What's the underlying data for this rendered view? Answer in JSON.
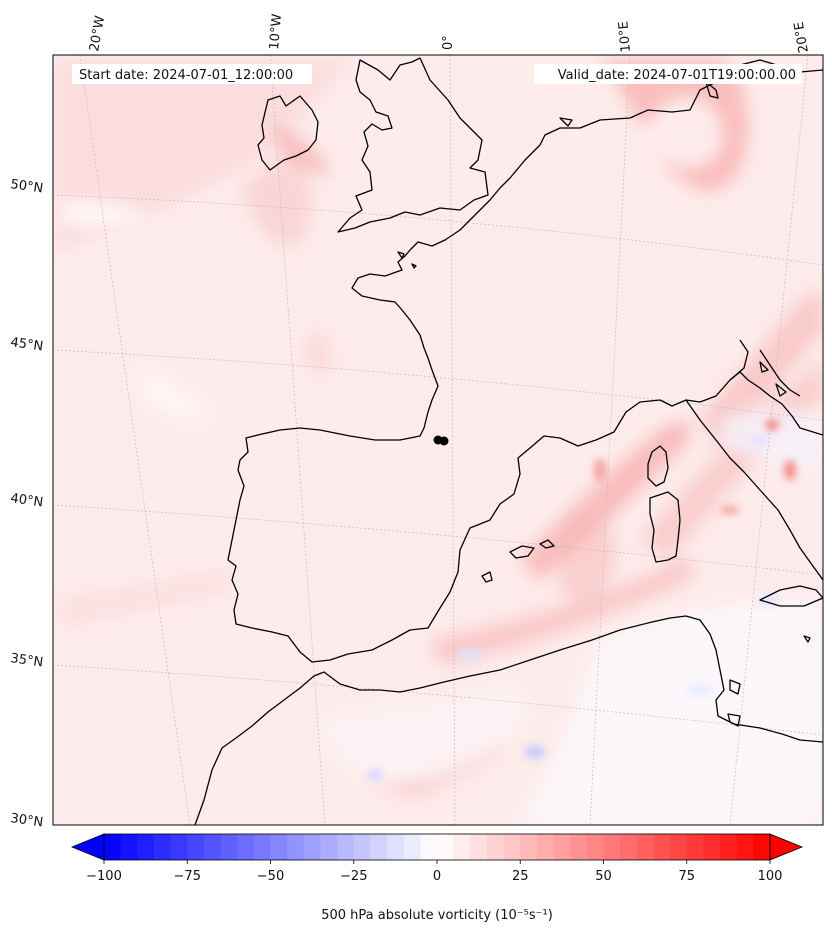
{
  "header": {
    "start_date": "Start date: 2024-07-01_12:00:00",
    "valid_date": "Valid_date: 2024-07-01T19:00:00.00"
  },
  "map": {
    "lon_labels": [
      "20°W",
      "10°W",
      "0°",
      "10°E",
      "20°E"
    ],
    "lat_labels": [
      "50°N",
      "45°N",
      "40°N",
      "35°N",
      "30°N"
    ],
    "land_colors": {
      "background": "#fdecec"
    }
  },
  "colorbar": {
    "label": "500 hPa absolute vorticity (10⁻⁵s⁻¹)",
    "ticks": [
      "−100",
      "−75",
      "−50",
      "−25",
      "0",
      "25",
      "50",
      "75",
      "100"
    ],
    "min": -100,
    "max": 100,
    "levels": 40,
    "cmap": "bwr",
    "extend": "both"
  }
}
